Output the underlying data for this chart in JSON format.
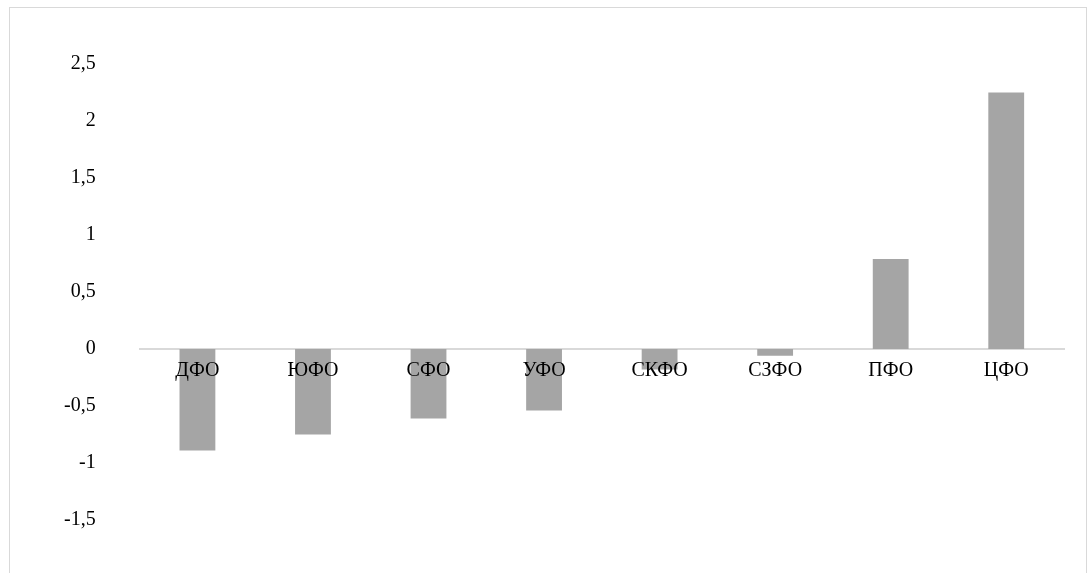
{
  "chart_data": {
    "type": "bar",
    "categories": [
      "ДФО",
      "ЮФО",
      "СФО",
      "УФО",
      "СКФО",
      "СЗФО",
      "ПФО",
      "ЦФО"
    ],
    "values": [
      -0.89,
      -0.75,
      -0.61,
      -0.54,
      -0.18,
      -0.06,
      0.79,
      2.25
    ],
    "color": "#a5a5a5",
    "ylim": [
      -1.5,
      2.5
    ],
    "yticks": [
      {
        "value": -1.5,
        "label": "-1,5"
      },
      {
        "value": -1,
        "label": "-1"
      },
      {
        "value": -0.5,
        "label": "-0,5"
      },
      {
        "value": 0,
        "label": "0"
      },
      {
        "value": 0.5,
        "label": "0,5"
      },
      {
        "value": 1,
        "label": "1"
      },
      {
        "value": 1.5,
        "label": "1,5"
      },
      {
        "value": 2,
        "label": "2"
      },
      {
        "value": 2.5,
        "label": "2,5"
      }
    ],
    "grid": false,
    "legend": false
  }
}
